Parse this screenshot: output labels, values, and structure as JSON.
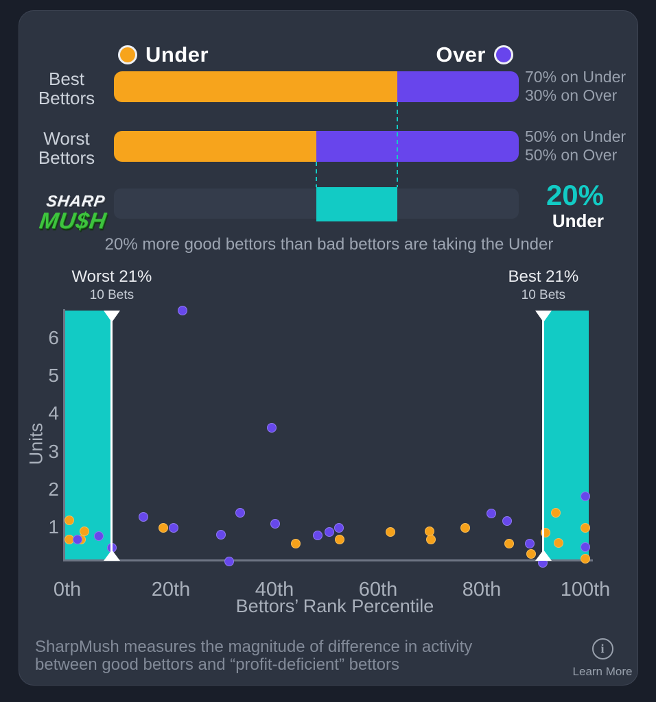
{
  "legend": {
    "under_label": "Under",
    "over_label": "Over"
  },
  "colors": {
    "under": "#F7A41C",
    "over": "#6845EC",
    "teal": "#12CBC5",
    "card_bg": "#2D3441",
    "page_bg": "#191E29",
    "axis_gray": "#6E7584"
  },
  "logo": {
    "top": "SHARP",
    "bottom": "MU$H"
  },
  "top_summary": {
    "rows": [
      {
        "name": "Best Bettors",
        "label_lines": [
          "Best",
          "Bettors"
        ],
        "under_pct": 70,
        "over_pct": 30,
        "annotation_lines": [
          "70% on Under",
          "30% on Over"
        ]
      },
      {
        "name": "Worst Bettors",
        "label_lines": [
          "Worst",
          "Bettors"
        ],
        "under_pct": 50,
        "over_pct": 50,
        "annotation_lines": [
          "50% on Under",
          "50% on Over"
        ]
      }
    ],
    "difference": {
      "value_label": "20%",
      "side_label": "Under",
      "from_pct": 50,
      "to_pct": 70
    },
    "caption": "20% more good bettors than bad bettors are taking the Under"
  },
  "chart_data": [
    {
      "type": "bar",
      "subtype": "stacked-horizontal-percent",
      "categories": [
        "Best Bettors",
        "Worst Bettors"
      ],
      "series": [
        {
          "name": "Under",
          "color": "#F7A41C",
          "values": [
            70,
            50
          ]
        },
        {
          "name": "Over",
          "color": "#6845EC",
          "values": [
            30,
            50
          ]
        }
      ],
      "value_labels": [
        [
          "70% on Under",
          "30% on Over"
        ],
        [
          "50% on Under",
          "50% on Over"
        ]
      ],
      "difference": {
        "value": 20,
        "label": "20% Under"
      },
      "caption": "20% more good bettors than bad bettors are taking the Under"
    },
    {
      "type": "scatter",
      "xlabel": "Bettors’ Rank Percentile",
      "ylabel": "Units",
      "x_tick_labels": [
        "0th",
        "20th",
        "40th",
        "60th",
        "80th",
        "100th"
      ],
      "x_tick_values": [
        0,
        20,
        40,
        60,
        80,
        100
      ],
      "y_ticks": [
        1,
        2,
        3,
        4,
        5,
        6
      ],
      "ylim": [
        0,
        6.8
      ],
      "grid": false,
      "zones": [
        {
          "label": "Worst 21%",
          "sublabel": "10 Bets",
          "x_range": [
            -0.6,
            8.6
          ],
          "boundary": "right"
        },
        {
          "label": "Best 21%",
          "sublabel": "10 Bets",
          "x_range": [
            91.9,
            100.7
          ],
          "boundary": "left"
        }
      ],
      "series": [
        {
          "name": "Under",
          "color": "#F6A21B",
          "points": [
            [
              0.4,
              1.18
            ],
            [
              3.3,
              0.89
            ],
            [
              0.4,
              0.67
            ],
            [
              2.6,
              0.67
            ],
            [
              18.5,
              0.98
            ],
            [
              44.1,
              0.56
            ],
            [
              52.6,
              0.67
            ],
            [
              62.4,
              0.87
            ],
            [
              69.9,
              0.89
            ],
            [
              70.2,
              0.67
            ],
            [
              76.8,
              0.98
            ],
            [
              85.3,
              0.56
            ],
            [
              89.5,
              0.29
            ],
            [
              92.3,
              0.85
            ],
            [
              94.3,
              1.38
            ],
            [
              94.8,
              0.58
            ],
            [
              100,
              0.98
            ],
            [
              100,
              0.16
            ]
          ]
        },
        {
          "name": "Over",
          "color": "#6748EB",
          "points": [
            [
              2.0,
              0.67
            ],
            [
              6.1,
              0.76
            ],
            [
              8.6,
              0.46
            ],
            [
              14.7,
              1.27
            ],
            [
              20.5,
              0.98
            ],
            [
              22.3,
              6.73
            ],
            [
              29.7,
              0.8
            ],
            [
              33.4,
              1.38
            ],
            [
              31.3,
              0.09
            ],
            [
              39.5,
              3.63
            ],
            [
              40.1,
              1.09
            ],
            [
              48.3,
              0.78
            ],
            [
              50.6,
              0.87
            ],
            [
              52.5,
              0.98
            ],
            [
              81.9,
              1.36
            ],
            [
              84.9,
              1.16
            ],
            [
              89.3,
              0.56
            ],
            [
              91.8,
              0.05
            ],
            [
              100,
              1.82
            ],
            [
              100,
              0.47
            ]
          ]
        }
      ]
    }
  ],
  "footer": {
    "line1": "SharpMush measures the magnitude of difference in activity",
    "line2": "between good bettors and “profit-deficient” bettors",
    "learn_more": "Learn More"
  }
}
